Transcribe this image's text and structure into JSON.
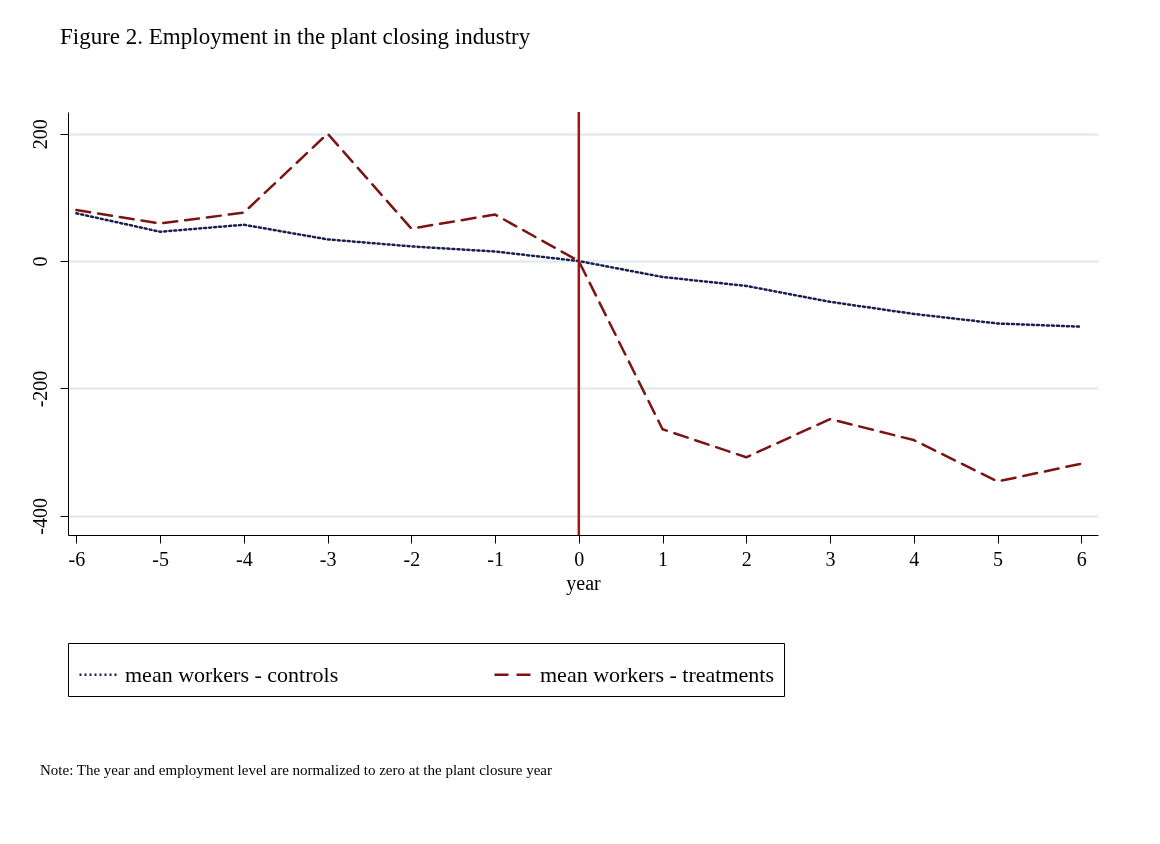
{
  "chart_data": {
    "type": "line",
    "title": "Figure 2. Employment in the plant closing industry",
    "xlabel": "year",
    "x": [
      -6,
      -5,
      -4,
      -3,
      -2,
      -1,
      0,
      1,
      2,
      3,
      4,
      5,
      6
    ],
    "series": [
      {
        "name": "mean workers - controls",
        "color": "#1a1f4f",
        "line_style": "dotted",
        "values": [
          75,
          46,
          57,
          34,
          23,
          15,
          0,
          -25,
          -39,
          -64,
          -83,
          -98,
          -103
        ]
      },
      {
        "name": "mean workers - treatments",
        "color": "#7b1414",
        "line_style": "dashed",
        "values": [
          80,
          59,
          76,
          200,
          51,
          73,
          0,
          -264,
          -308,
          -248,
          -281,
          -346,
          -318
        ]
      }
    ],
    "xlim": [
      -6.1,
      6.2
    ],
    "xticks": [
      -6,
      -5,
      -4,
      -3,
      -2,
      -1,
      0,
      1,
      2,
      3,
      4,
      5,
      6
    ],
    "ylim": [
      -430,
      234
    ],
    "yticks": [
      -400,
      -200,
      0,
      200
    ],
    "grid": "y",
    "legend": "bottom",
    "marker": "none",
    "ref_lines": [
      {
        "axis": "x",
        "value": 0,
        "color": "#a31515",
        "line_style": "solid"
      }
    ],
    "annotations": [
      "Note: The year and employment level are normalized to zero at the plant closure year"
    ]
  }
}
